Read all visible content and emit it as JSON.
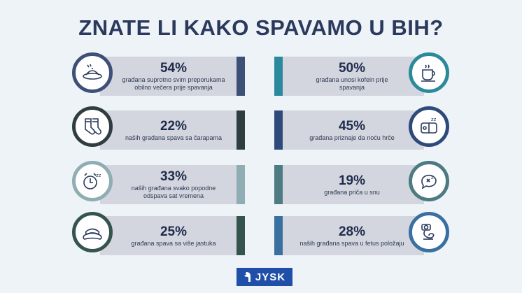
{
  "title": "ZNATE LI KAKO SPAVAMO U BIH?",
  "stats": [
    {
      "percent": "54%",
      "line1": "građana suprotno svim preporukama",
      "line2": "obilno večera prije spavanja",
      "icon": "dinner-plate-icon",
      "color": "#3e5078"
    },
    {
      "percent": "22%",
      "line1": "naših građana spava sa čarapama",
      "line2": "",
      "icon": "socks-icon",
      "color": "#2f3d41"
    },
    {
      "percent": "33%",
      "line1": "naših građana svako popodne",
      "line2": "odspava sat vremena",
      "icon": "alarm-clock-icon",
      "color": "#8fadb3"
    },
    {
      "percent": "25%",
      "line1": "građana spava sa više jastuka",
      "line2": "",
      "icon": "pillow-icon",
      "color": "#35544e"
    },
    {
      "percent": "50%",
      "line1": "građana unosi kofein prije",
      "line2": "spavanja",
      "icon": "coffee-cup-icon",
      "color": "#2a8a9b"
    },
    {
      "percent": "45%",
      "line1": "građana priznaje da noću hrče",
      "line2": "",
      "icon": "snoring-icon",
      "color": "#2e4a7a"
    },
    {
      "percent": "19%",
      "line1": "građana priča u snu",
      "line2": "",
      "icon": "sleep-talk-bubble-icon",
      "color": "#4e7a82"
    },
    {
      "percent": "28%",
      "line1": "naših građana spava u fetus položaju",
      "line2": "",
      "icon": "fetal-position-icon",
      "color": "#3a70a0"
    }
  ],
  "logo": {
    "text": "JYSK",
    "color": "#1f4fa8"
  }
}
